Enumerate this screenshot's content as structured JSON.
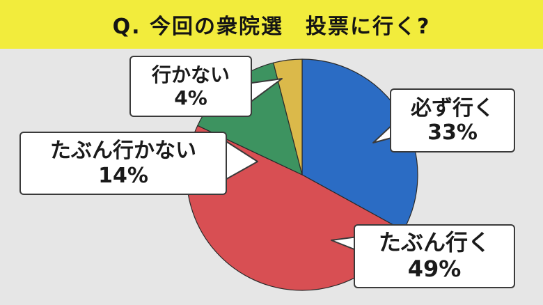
{
  "title": "Q. 今回の衆院選　投票に行く?",
  "chart_data": {
    "type": "pie",
    "title": "Q. 今回の衆院選　投票に行く?",
    "slices": [
      {
        "label": "必ず行く",
        "value": 33,
        "value_label": "33%",
        "color": "#2b6cc4"
      },
      {
        "label": "たぶん行く",
        "value": 49,
        "value_label": "49%",
        "color": "#d84f53"
      },
      {
        "label": "たぶん行かない",
        "value": 14,
        "value_label": "14%",
        "color": "#3d9360"
      },
      {
        "label": "行かない",
        "value": 4,
        "value_label": "4%",
        "color": "#dbb94a"
      }
    ],
    "start": "12 o'clock",
    "direction": "clockwise"
  }
}
